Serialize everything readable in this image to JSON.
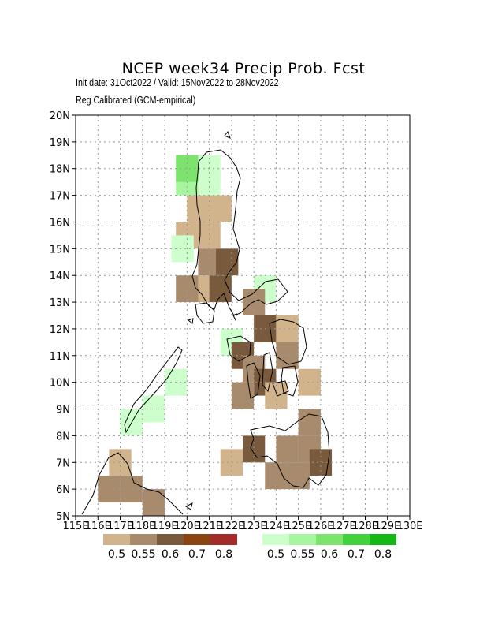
{
  "title": "NCEP week34 Precip Prob. Fcst",
  "init_line": "Init date: 31Oct2022 / Valid: 15Nov2022 to 28Nov2022",
  "method_line": "Reg Calibrated (GCM-empirical)",
  "axes": {
    "x_ticks": [
      "115E",
      "116E",
      "117E",
      "118E",
      "119E",
      "120E",
      "121E",
      "122E",
      "123E",
      "124E",
      "125E",
      "126E",
      "127E",
      "128E",
      "129E",
      "130E"
    ],
    "y_ticks": [
      "5N",
      "6N",
      "7N",
      "8N",
      "9N",
      "10N",
      "11N",
      "12N",
      "13N",
      "14N",
      "15N",
      "16N",
      "17N",
      "18N",
      "19N",
      "20N"
    ],
    "lon_range": [
      115,
      130
    ],
    "lat_range": [
      5,
      20
    ],
    "grid": "dotted"
  },
  "legend": {
    "dry": {
      "labels": [
        "0.5",
        "0.55",
        "0.6",
        "0.7",
        "0.8"
      ],
      "colors": [
        "#d2b48c",
        "#a88a6c",
        "#7a5a3c",
        "#8b4513",
        "#a52a2a"
      ]
    },
    "wet": {
      "labels": [
        "0.5",
        "0.55",
        "0.6",
        "0.7",
        "0.8"
      ],
      "colors": [
        "#ccffcc",
        "#a8f5a0",
        "#7ce36c",
        "#3fd23c",
        "#14b814"
      ]
    }
  },
  "chart_data": {
    "type": "heatmap",
    "cell_size_deg": 1.0,
    "note_units": "probability category",
    "cells": [
      {
        "lon": 120.0,
        "lat": 17.5,
        "cat": "wet2"
      },
      {
        "lon": 121.0,
        "lat": 17.5,
        "cat": "wet1"
      },
      {
        "lon": 120.0,
        "lat": 18.0,
        "cat": "wet3"
      },
      {
        "lon": 121.0,
        "lat": 18.0,
        "cat": "wet1"
      },
      {
        "lon": 120.5,
        "lat": 16.5,
        "cat": "dry1"
      },
      {
        "lon": 121.5,
        "lat": 16.5,
        "cat": "dry1"
      },
      {
        "lon": 120.0,
        "lat": 15.5,
        "cat": "dry1"
      },
      {
        "lon": 121.0,
        "lat": 15.5,
        "cat": "dry1"
      },
      {
        "lon": 119.8,
        "lat": 15.0,
        "cat": "wet1"
      },
      {
        "lon": 121.0,
        "lat": 14.5,
        "cat": "dry2"
      },
      {
        "lon": 121.8,
        "lat": 14.5,
        "cat": "dry3"
      },
      {
        "lon": 121.0,
        "lat": 13.5,
        "cat": "dry1"
      },
      {
        "lon": 121.5,
        "lat": 13.5,
        "cat": "dry3"
      },
      {
        "lon": 120.0,
        "lat": 13.5,
        "cat": "dry2"
      },
      {
        "lon": 123.5,
        "lat": 13.5,
        "cat": "wet1"
      },
      {
        "lon": 123.0,
        "lat": 13.0,
        "cat": "dry2"
      },
      {
        "lon": 124.5,
        "lat": 12.0,
        "cat": "dry1"
      },
      {
        "lon": 123.5,
        "lat": 12.0,
        "cat": "dry3"
      },
      {
        "lon": 122.0,
        "lat": 11.5,
        "cat": "wet1"
      },
      {
        "lon": 122.5,
        "lat": 11.0,
        "cat": "dry3"
      },
      {
        "lon": 124.5,
        "lat": 11.0,
        "cat": "dry2"
      },
      {
        "lon": 123.0,
        "lat": 10.5,
        "cat": "dry2"
      },
      {
        "lon": 123.5,
        "lat": 10.0,
        "cat": "dry3"
      },
      {
        "lon": 124.0,
        "lat": 9.5,
        "cat": "dry1"
      },
      {
        "lon": 122.5,
        "lat": 9.5,
        "cat": "dry2"
      },
      {
        "lon": 125.5,
        "lat": 10.0,
        "cat": "dry1"
      },
      {
        "lon": 123.0,
        "lat": 7.5,
        "cat": "dry3"
      },
      {
        "lon": 124.5,
        "lat": 7.5,
        "cat": "dry2"
      },
      {
        "lon": 125.5,
        "lat": 7.5,
        "cat": "dry2"
      },
      {
        "lon": 124.0,
        "lat": 6.5,
        "cat": "dry2"
      },
      {
        "lon": 125.0,
        "lat": 6.5,
        "cat": "dry2"
      },
      {
        "lon": 126.0,
        "lat": 7.0,
        "cat": "dry3"
      },
      {
        "lon": 125.5,
        "lat": 8.5,
        "cat": "dry2"
      },
      {
        "lon": 122.0,
        "lat": 7.0,
        "cat": "dry1"
      },
      {
        "lon": 116.5,
        "lat": 6.0,
        "cat": "dry2"
      },
      {
        "lon": 117.5,
        "lat": 6.0,
        "cat": "dry2"
      },
      {
        "lon": 118.5,
        "lat": 5.5,
        "cat": "dry2"
      },
      {
        "lon": 117.0,
        "lat": 7.0,
        "cat": "dry1"
      },
      {
        "lon": 119.5,
        "lat": 10.0,
        "cat": "wet1"
      },
      {
        "lon": 118.5,
        "lat": 9.0,
        "cat": "wet1"
      },
      {
        "lon": 117.5,
        "lat": 8.5,
        "cat": "wet1"
      }
    ]
  }
}
